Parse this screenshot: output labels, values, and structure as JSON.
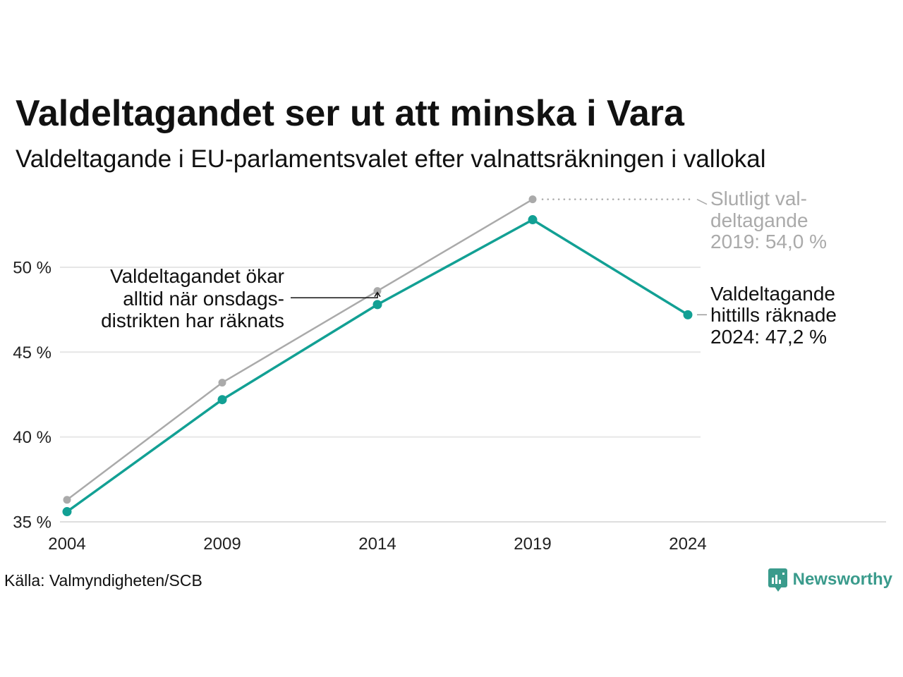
{
  "chart_data": {
    "type": "line",
    "title": "Valdeltagandet ser ut att minska i Vara",
    "subtitle": "Valdeltagande i EU-parlamentsvalet efter valnattsräkningen i vallokal",
    "x": [
      2004,
      2009,
      2014,
      2019,
      2024
    ],
    "x_tick_labels": [
      "2004",
      "2009",
      "2014",
      "2019",
      "2024"
    ],
    "xlim": [
      2004,
      2024
    ],
    "y_ticks": [
      35,
      40,
      45,
      50
    ],
    "y_tick_labels": [
      "35 %",
      "40 %",
      "45 %",
      "50 %"
    ],
    "ylim": [
      35,
      55
    ],
    "grid": true,
    "legend": false,
    "series": [
      {
        "color": "#aaaaaa",
        "values": [
          36.3,
          43.2,
          48.6,
          54.0,
          null
        ]
      },
      {
        "color": "#12a094",
        "values": [
          35.6,
          42.2,
          47.8,
          52.8,
          47.2
        ]
      }
    ],
    "annotations": [
      {
        "x": 2019,
        "color": "#aaaaaa",
        "lines": [
          "Slutligt val-",
          "deltagande",
          "2019: 54,0 %"
        ]
      },
      {
        "x": 2024,
        "color": "#111111",
        "lines": [
          "Valdeltagande",
          "hittills räknade",
          "2024: 47,2 %"
        ]
      },
      {
        "x": 2014,
        "color": "#111111",
        "lines": [
          "Valdeltagandet ökar",
          "alltid när onsdags-",
          "distrikten har räknats"
        ]
      }
    ]
  },
  "source": "Källa: Valmyndigheten/SCB",
  "brand": {
    "name": "Newsworthy",
    "icon": "newsworthy-logo-icon",
    "color": "#3a9b8c"
  }
}
